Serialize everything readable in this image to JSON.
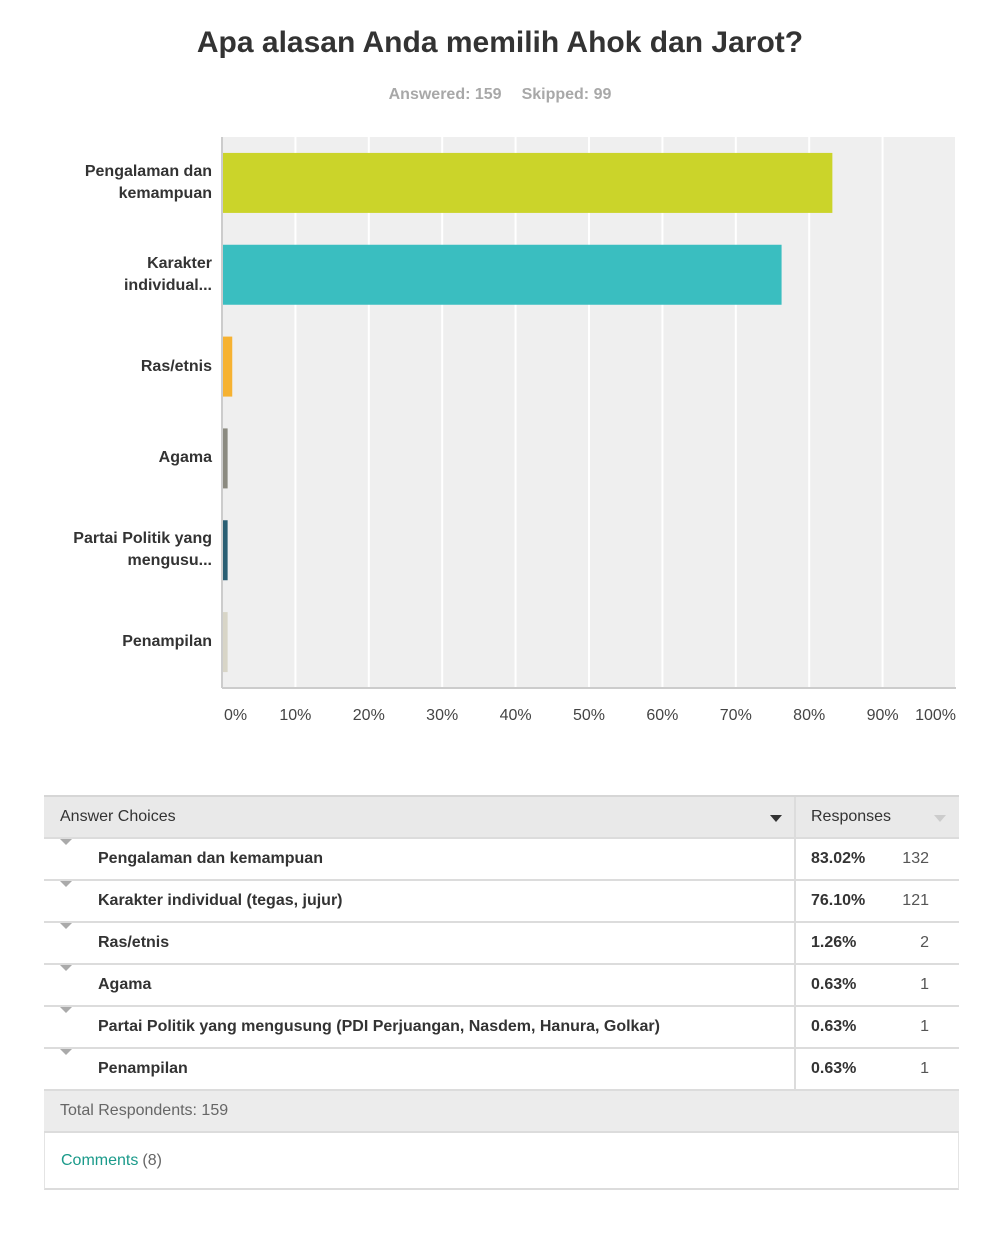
{
  "chart_data": {
    "type": "hbar",
    "title": "Apa alasan Anda memilih Ahok dan Jarot?",
    "subtitle": [
      "Answered: 159",
      "Skipped: 99"
    ],
    "categories": [
      "Pengalaman dan kemampuan",
      "Karakter individual...",
      "Ras/etnis",
      "Agama",
      "Partai Politik yang mengusu...",
      "Penampilan"
    ],
    "values": [
      83.02,
      76.1,
      1.26,
      0.63,
      0.63,
      0.63
    ],
    "colors": [
      "#cbd42a",
      "#3abec0",
      "#f6b232",
      "#8b8a80",
      "#2a5f73",
      "#d8d5c7"
    ],
    "xlim": [
      0,
      100
    ],
    "xticks": [
      {
        "value": 0,
        "label": "0%"
      },
      {
        "value": 10,
        "label": "10%"
      },
      {
        "value": 20,
        "label": "20%"
      },
      {
        "value": 30,
        "label": "30%"
      },
      {
        "value": 40,
        "label": "40%"
      },
      {
        "value": 50,
        "label": "50%"
      },
      {
        "value": 60,
        "label": "60%"
      },
      {
        "value": 70,
        "label": "70%"
      },
      {
        "value": 80,
        "label": "80%"
      },
      {
        "value": 90,
        "label": "90%"
      },
      {
        "value": 100,
        "label": "100%"
      }
    ],
    "grid": true
  },
  "table": {
    "header": [
      "Answer Choices",
      "Responses"
    ],
    "rows": [
      [
        "Pengalaman dan kemampuan",
        "83.02%",
        "132"
      ],
      [
        "Karakter individual (tegas, jujur)",
        "76.10%",
        "121"
      ],
      [
        "Ras/etnis",
        "1.26%",
        "2"
      ],
      [
        "Agama",
        "0.63%",
        "1"
      ],
      [
        "Partai Politik yang mengusung (PDI Perjuangan, Nasdem, Hanura, Golkar)",
        "0.63%",
        "1"
      ],
      [
        "Penampilan",
        "0.63%",
        "1"
      ]
    ],
    "total": "Total Respondents: 159",
    "comments": {
      "link": "Comments",
      "count": "(8)"
    }
  }
}
